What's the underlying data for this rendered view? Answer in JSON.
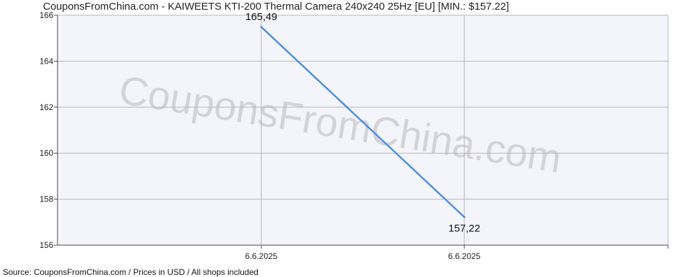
{
  "header": {
    "title": "CouponsFromChina.com - KAIWEETS KTI-200 Thermal Camera 240x240 25Hz [EU] [MIN.: $157.22]"
  },
  "watermark": {
    "text": "CouponsFromChina.com"
  },
  "footer": {
    "source": "Source:  CouponsFromChina.com / Prices in USD / All shops included"
  },
  "colors": {
    "line": "#4a8ee6",
    "plot_background": "#f4f4fb",
    "grid": "#b4b4b4",
    "axis": "#444444"
  },
  "chart_data": {
    "type": "line",
    "title": "CouponsFromChina.com - KAIWEETS KTI-200 Thermal Camera 240x240 25Hz [EU] [MIN.: $157.22]",
    "xlabel": "",
    "ylabel": "",
    "ylim": [
      156,
      166
    ],
    "y_ticks": [
      156,
      158,
      160,
      162,
      164,
      166
    ],
    "x_tick_labels": [
      "6.6.2025",
      "6.6.2025"
    ],
    "grid": true,
    "series": [
      {
        "points": [
          {
            "x": "6.6.2025",
            "y": 165.49,
            "label": "165,49"
          },
          {
            "x": "6.6.2025",
            "y": 157.22,
            "label": "157,22"
          }
        ]
      }
    ]
  }
}
